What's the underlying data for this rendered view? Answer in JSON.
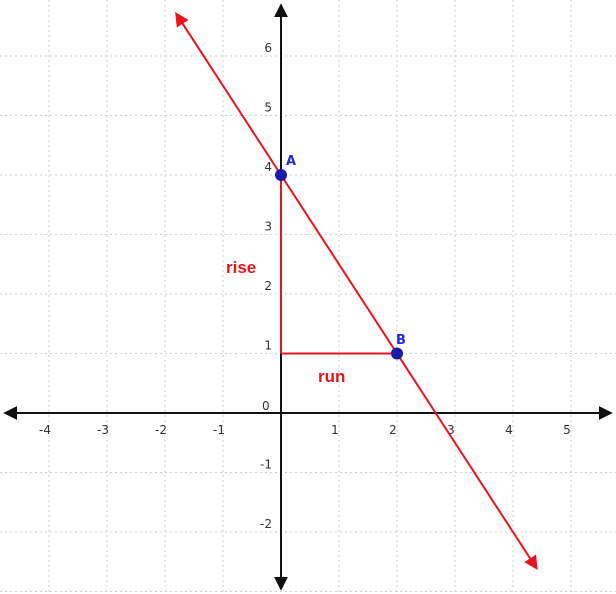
{
  "chart_data": {
    "type": "line",
    "title": "",
    "xlabel": "",
    "ylabel": "",
    "xlim": [
      -5,
      6
    ],
    "ylim": [
      -3,
      7
    ],
    "grid": true,
    "x_ticks": [
      "-4",
      "-3",
      "-2",
      "-1",
      "1",
      "2",
      "3",
      "4",
      "5"
    ],
    "y_ticks": [
      "-2",
      "-1",
      "1",
      "2",
      "3",
      "4",
      "5",
      "6"
    ],
    "origin_label": "0",
    "line": {
      "slope": -1.5,
      "intercept": 4,
      "x_start": -1.8,
      "x_end": 4.4,
      "color": "#e8141c"
    },
    "points": [
      {
        "name": "A",
        "x": 0,
        "y": 4,
        "color": "#1a1aa8"
      },
      {
        "name": "B",
        "x": 2,
        "y": 1,
        "color": "#1a1aa8"
      }
    ],
    "slope_triangle": {
      "vertical": {
        "x": 0,
        "y_from": 4,
        "y_to": 1
      },
      "horizontal": {
        "y": 1,
        "x_from": 0,
        "x_to": 2
      },
      "color": "#e8141c"
    },
    "annotations": [
      {
        "text": "rise",
        "color": "#e8141c"
      },
      {
        "text": "run",
        "color": "#e8141c"
      }
    ]
  }
}
